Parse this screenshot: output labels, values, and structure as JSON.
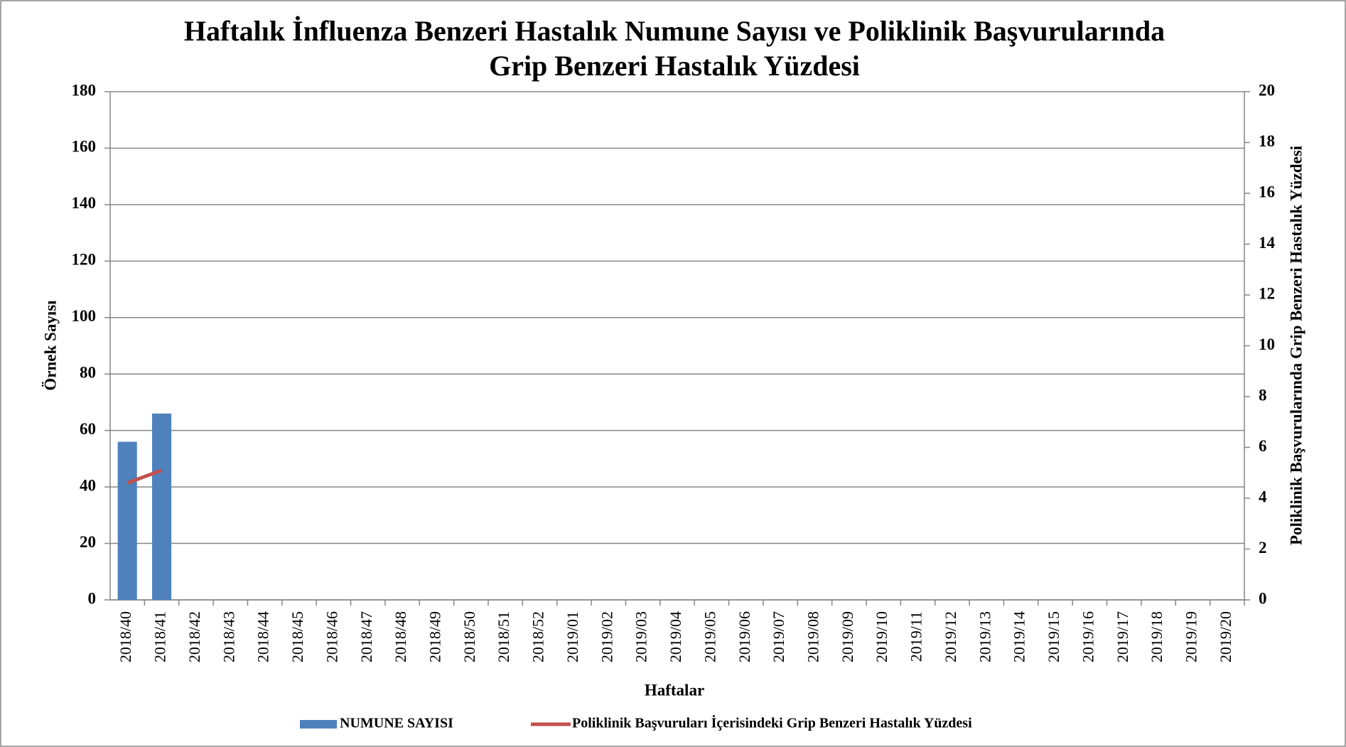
{
  "chart_data": {
    "type": "bar-line",
    "title": [
      "Haftalık İnfluenza Benzeri Hastalık Numune Sayısı ve Poliklinik Başvurularında",
      "Grip Benzeri Hastalık Yüzdesi"
    ],
    "x_label": "Haftalar",
    "y_label": "Örnek Sayısı",
    "y2_label": "Poliklinik Başvurularında Grip Benzeri Hastalık Yüzdesi",
    "categories": [
      "2018/40",
      "2018/41",
      "2018/42",
      "2018/43",
      "2018/44",
      "2018/45",
      "2018/46",
      "2018/47",
      "2018/48",
      "2018/49",
      "2018/50",
      "2018/51",
      "2018/52",
      "2019/01",
      "2019/02",
      "2019/03",
      "2019/04",
      "2019/05",
      "2019/06",
      "2019/07",
      "2019/08",
      "2019/09",
      "2019/10",
      "2019/11",
      "2019/12",
      "2019/13",
      "2019/14",
      "2019/15",
      "2019/16",
      "2019/17",
      "2019/18",
      "2019/19",
      "2019/20"
    ],
    "series": [
      {
        "name": "NUMUNE SAYISI",
        "type": "bar",
        "color": "#4f81bd",
        "values": [
          56,
          66,
          null,
          null,
          null,
          null,
          null,
          null,
          null,
          null,
          null,
          null,
          null,
          null,
          null,
          null,
          null,
          null,
          null,
          null,
          null,
          null,
          null,
          null,
          null,
          null,
          null,
          null,
          null,
          null,
          null,
          null,
          null
        ]
      },
      {
        "name": "Poliklinik Başvuruları İçerisindeki Grip Benzeri Hastalık Yüzdesi",
        "type": "line",
        "axis": "y2",
        "color": "#c0504d",
        "values": [
          4.6,
          5.1,
          null,
          null,
          null,
          null,
          null,
          null,
          null,
          null,
          null,
          null,
          null,
          null,
          null,
          null,
          null,
          null,
          null,
          null,
          null,
          null,
          null,
          null,
          null,
          null,
          null,
          null,
          null,
          null,
          null,
          null,
          null
        ]
      }
    ],
    "ylim": [
      0,
      180
    ],
    "yticks": [
      0,
      20,
      40,
      60,
      80,
      100,
      120,
      140,
      160,
      180
    ],
    "y2lim": [
      0,
      20
    ],
    "y2ticks": [
      0,
      2,
      4,
      6,
      8,
      10,
      12,
      14,
      16,
      18,
      20
    ],
    "grid": true,
    "legend": "bottom"
  }
}
